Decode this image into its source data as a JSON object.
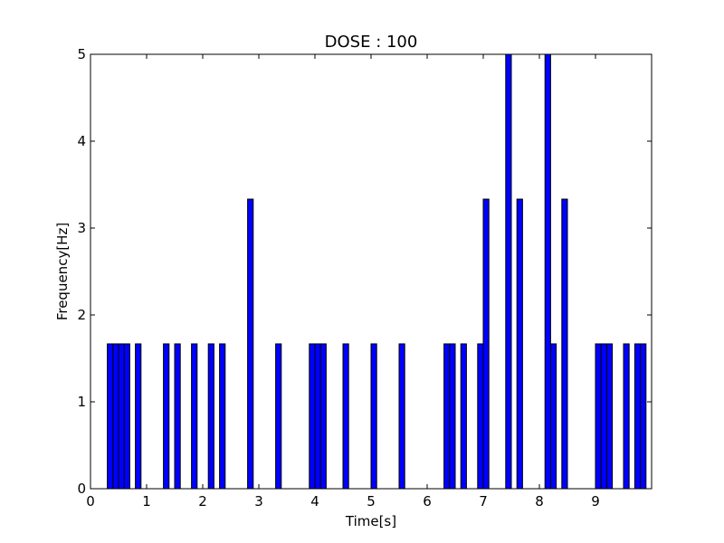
{
  "chart_data": {
    "type": "bar",
    "title": "DOSE : 100",
    "xlabel": "Time[s]",
    "ylabel": "Frequency[Hz]",
    "xlim": [
      0,
      10
    ],
    "ylim": [
      0,
      5
    ],
    "xticks": [
      "0",
      "1",
      "2",
      "3",
      "4",
      "5",
      "6",
      "7",
      "8",
      "9"
    ],
    "yticks": [
      "0",
      "1",
      "2",
      "3",
      "4",
      "5"
    ],
    "bar_width": 0.1,
    "bar_color": "#0000ff",
    "grid": false,
    "x": [
      0.3,
      0.4,
      0.5,
      0.6,
      0.8,
      1.3,
      1.5,
      1.8,
      2.1,
      2.3,
      2.8,
      3.3,
      3.9,
      4.0,
      4.1,
      4.5,
      5.0,
      5.5,
      6.3,
      6.4,
      6.6,
      6.9,
      7.0,
      7.4,
      7.6,
      8.1,
      8.2,
      8.4,
      9.0,
      9.1,
      9.2,
      9.5,
      9.7,
      9.8
    ],
    "values": [
      1.667,
      1.667,
      1.667,
      1.667,
      1.667,
      1.667,
      1.667,
      1.667,
      1.667,
      1.667,
      3.333,
      1.667,
      1.667,
      1.667,
      1.667,
      1.667,
      1.667,
      1.667,
      1.667,
      1.667,
      1.667,
      1.667,
      3.333,
      5.0,
      3.333,
      5.0,
      1.667,
      3.333,
      1.667,
      1.667,
      1.667,
      1.667,
      1.667,
      1.667
    ]
  }
}
